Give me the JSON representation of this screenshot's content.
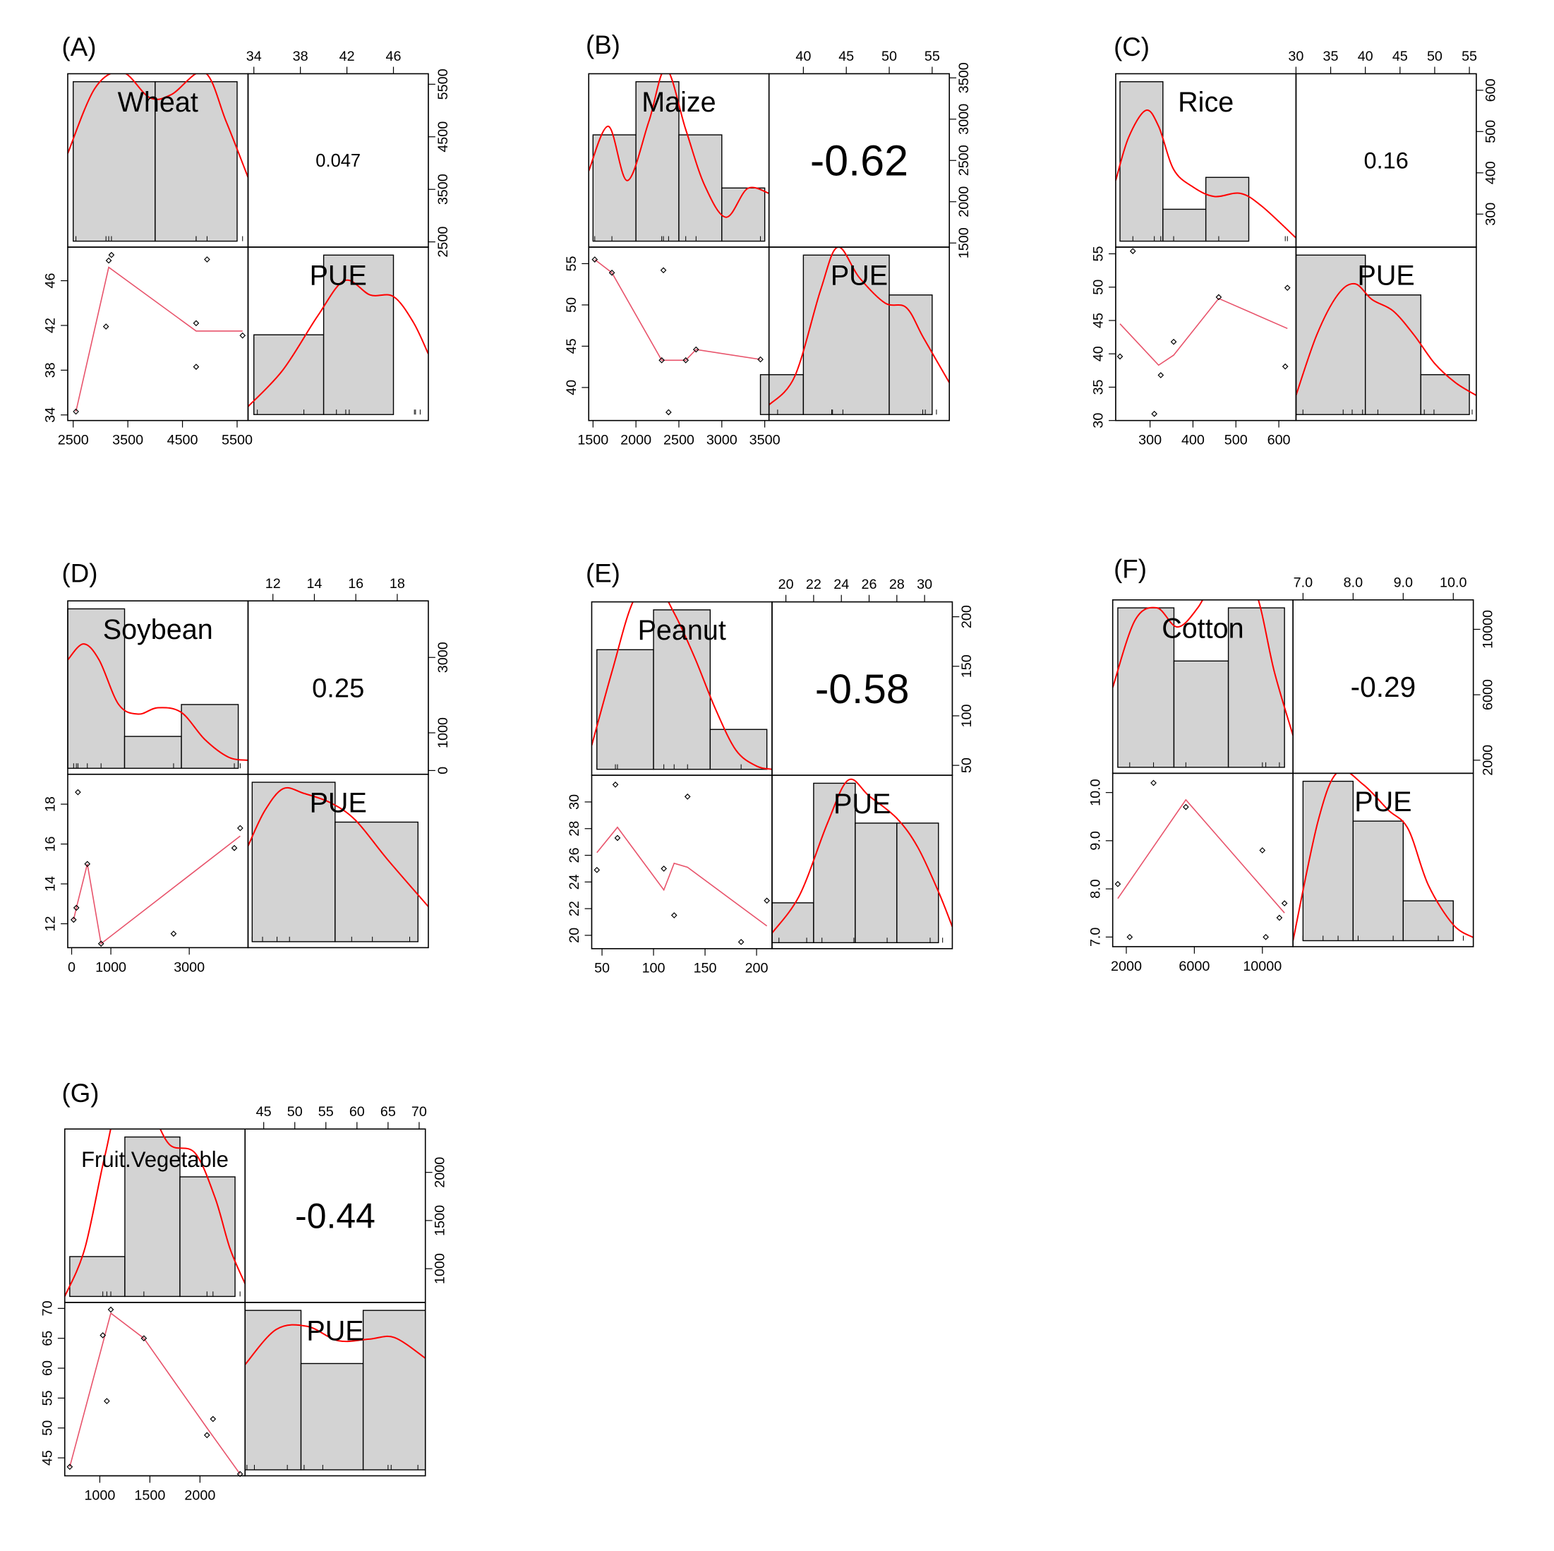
{
  "colors": {
    "bar_fill": "#d3d3d3",
    "frame": "#000000",
    "density": "#ff0000",
    "smoother": "#e8536b",
    "point": "#000000"
  },
  "chart_data": [
    {
      "panel": "(A)",
      "type": "scatter-matrix",
      "vars": [
        "Wheat",
        "PUE"
      ],
      "ranges": [
        [
          2400,
          5700
        ],
        [
          33.5,
          49
        ]
      ],
      "ticks_var1": [
        2500,
        3500,
        4500,
        5500
      ],
      "tick_labels_var1": [
        "2500",
        "3500",
        "4500",
        "5500"
      ],
      "ticks_var2": [
        34,
        38,
        42,
        46
      ],
      "tick_labels_var2": [
        "34",
        "38",
        "42",
        "46"
      ],
      "correlation": "0.047",
      "points": [
        [
          2550,
          34.3
        ],
        [
          3100,
          41.9
        ],
        [
          3150,
          47.8
        ],
        [
          3200,
          48.3
        ],
        [
          4750,
          42.2
        ],
        [
          4750,
          38.3
        ],
        [
          4950,
          47.9
        ],
        [
          5600,
          41.1
        ]
      ],
      "smooth": [
        [
          2550,
          34.3
        ],
        [
          3150,
          47.2
        ],
        [
          4750,
          41.5
        ],
        [
          5600,
          41.5
        ]
      ],
      "hist_var1": {
        "breaks": [
          2500,
          4000,
          5500
        ],
        "counts": [
          4,
          4
        ],
        "max": 4
      },
      "hist_var2": {
        "breaks": [
          34,
          40,
          46
        ],
        "counts": [
          1,
          2
        ],
        "max": 2
      },
      "density_var1": [
        [
          2400,
          0.55
        ],
        [
          2900,
          0.96
        ],
        [
          3400,
          1.06
        ],
        [
          3900,
          0.9
        ],
        [
          4300,
          0.92
        ],
        [
          4900,
          1.06
        ],
        [
          5300,
          0.75
        ],
        [
          5700,
          0.4
        ]
      ],
      "density_var2": [
        [
          33.5,
          0.05
        ],
        [
          36.5,
          0.28
        ],
        [
          39.5,
          0.62
        ],
        [
          41.8,
          0.84
        ],
        [
          44,
          0.75
        ],
        [
          46,
          0.74
        ],
        [
          47.7,
          0.58
        ],
        [
          49,
          0.38
        ]
      ]
    },
    {
      "panel": "(B)",
      "type": "scatter-matrix",
      "vars": [
        "Maize",
        "PUE"
      ],
      "ranges": [
        [
          1450,
          3550
        ],
        [
          36,
          57
        ]
      ],
      "ticks_var1": [
        1500,
        2000,
        2500,
        3000,
        3500
      ],
      "tick_labels_var1": [
        "1500",
        "2000",
        "2500",
        "3000",
        "3500"
      ],
      "ticks_var2": [
        40,
        45,
        50,
        55
      ],
      "tick_labels_var2": [
        "40",
        "45",
        "50",
        "55"
      ],
      "correlation": "-0.62",
      "points": [
        [
          1520,
          55.5
        ],
        [
          1720,
          53.9
        ],
        [
          2300,
          43.3
        ],
        [
          2320,
          54.2
        ],
        [
          2380,
          37.0
        ],
        [
          2580,
          43.3
        ],
        [
          2700,
          44.6
        ],
        [
          3450,
          43.4
        ]
      ],
      "smooth": [
        [
          1520,
          55.5
        ],
        [
          1720,
          53.9
        ],
        [
          2300,
          43.3
        ],
        [
          2580,
          43.3
        ],
        [
          2700,
          44.6
        ],
        [
          3450,
          43.4
        ]
      ],
      "hist_var1": {
        "breaks": [
          1500,
          2000,
          2500,
          3000,
          3500
        ],
        "counts": [
          2,
          3,
          2,
          1
        ],
        "max": 3
      },
      "hist_var2": {
        "breaks": [
          35,
          40,
          50,
          55
        ],
        "counts": [
          1,
          4,
          3
        ],
        "max": 4
      },
      "density_var1": [
        [
          1450,
          0.44
        ],
        [
          1680,
          0.72
        ],
        [
          1900,
          0.38
        ],
        [
          2150,
          0.75
        ],
        [
          2350,
          1.08
        ],
        [
          2580,
          0.7
        ],
        [
          2800,
          0.35
        ],
        [
          3050,
          0.15
        ],
        [
          3300,
          0.33
        ],
        [
          3550,
          0.3
        ]
      ],
      "density_var2": [
        [
          36,
          0.06
        ],
        [
          39,
          0.24
        ],
        [
          42,
          0.78
        ],
        [
          44,
          1.05
        ],
        [
          46.5,
          0.86
        ],
        [
          49.5,
          0.7
        ],
        [
          52,
          0.67
        ],
        [
          54,
          0.48
        ],
        [
          57,
          0.2
        ]
      ]
    },
    {
      "panel": "(C)",
      "type": "scatter-matrix",
      "vars": [
        "Rice",
        "PUE"
      ],
      "ranges": [
        [
          220,
          640
        ],
        [
          30,
          56
        ]
      ],
      "ticks_var1": [
        300,
        400,
        500,
        600
      ],
      "tick_labels_var1": [
        "300",
        "400",
        "500",
        "600"
      ],
      "ticks_var2": [
        30,
        35,
        40,
        45,
        50,
        55
      ],
      "tick_labels_var2": [
        "30",
        "35",
        "40",
        "45",
        "50",
        "55"
      ],
      "correlation": "0.16",
      "points": [
        [
          230,
          39.6
        ],
        [
          260,
          55.4
        ],
        [
          310,
          31.0
        ],
        [
          325,
          36.8
        ],
        [
          355,
          41.8
        ],
        [
          460,
          48.5
        ],
        [
          615,
          38.1
        ],
        [
          620,
          49.9
        ]
      ],
      "smooth": [
        [
          230,
          44.5
        ],
        [
          320,
          38.3
        ],
        [
          355,
          39.8
        ],
        [
          460,
          48.3
        ],
        [
          620,
          43.8
        ]
      ],
      "hist_var1": {
        "breaks": [
          230,
          330,
          430,
          530,
          630
        ],
        "counts": [
          5,
          1,
          2,
          0
        ],
        "max": 5
      },
      "hist_var2": {
        "breaks": [
          30,
          40,
          48,
          55
        ],
        "counts": [
          4,
          3,
          1
        ],
        "max": 4
      },
      "density_var1": [
        [
          220,
          0.38
        ],
        [
          250,
          0.65
        ],
        [
          290,
          0.82
        ],
        [
          320,
          0.72
        ],
        [
          355,
          0.45
        ],
        [
          400,
          0.34
        ],
        [
          450,
          0.28
        ],
        [
          510,
          0.3
        ],
        [
          560,
          0.22
        ],
        [
          640,
          0.02
        ]
      ],
      "density_var2": [
        [
          30,
          0.12
        ],
        [
          33,
          0.5
        ],
        [
          36,
          0.75
        ],
        [
          38.5,
          0.82
        ],
        [
          41,
          0.72
        ],
        [
          44,
          0.65
        ],
        [
          47,
          0.5
        ],
        [
          50,
          0.32
        ],
        [
          53,
          0.2
        ],
        [
          56,
          0.12
        ]
      ]
    },
    {
      "panel": "(D)",
      "type": "scatter-matrix",
      "vars": [
        "Soybean",
        "PUE"
      ],
      "ranges": [
        [
          -100,
          4500
        ],
        [
          10.8,
          19.5
        ]
      ],
      "ticks_var1": [
        0,
        1000,
        3000
      ],
      "tick_labels_var1": [
        "0",
        "1000",
        "3000"
      ],
      "ticks_var2": [
        12,
        14,
        16,
        18
      ],
      "tick_labels_var2": [
        "12",
        "14",
        "16",
        "18"
      ],
      "correlation": "0.25",
      "points": [
        [
          50,
          12.2
        ],
        [
          120,
          12.8
        ],
        [
          160,
          18.6
        ],
        [
          400,
          15.0
        ],
        [
          750,
          11.0
        ],
        [
          2600,
          11.5
        ],
        [
          4150,
          15.8
        ],
        [
          4300,
          16.8
        ]
      ],
      "smooth": [
        [
          50,
          12.2
        ],
        [
          120,
          12.8
        ],
        [
          400,
          15.0
        ],
        [
          750,
          11.0
        ],
        [
          4300,
          16.4
        ]
      ],
      "hist_var1": {
        "breaks": [
          -100,
          1350,
          2800,
          4250
        ],
        "counts": [
          5,
          1,
          2
        ],
        "max": 5
      },
      "hist_var2": {
        "breaks": [
          11,
          15,
          19
        ],
        "counts": [
          4,
          3
        ],
        "max": 4
      },
      "density_var1": [
        [
          -100,
          0.68
        ],
        [
          300,
          0.78
        ],
        [
          700,
          0.68
        ],
        [
          1200,
          0.4
        ],
        [
          1700,
          0.34
        ],
        [
          2200,
          0.38
        ],
        [
          2800,
          0.35
        ],
        [
          3400,
          0.18
        ],
        [
          4000,
          0.07
        ],
        [
          4500,
          0.05
        ]
      ],
      "density_var2": [
        [
          10.8,
          0.6
        ],
        [
          11.6,
          0.82
        ],
        [
          12.5,
          0.96
        ],
        [
          13.5,
          0.93
        ],
        [
          14.8,
          0.87
        ],
        [
          16,
          0.76
        ],
        [
          17.5,
          0.52
        ],
        [
          19.5,
          0.22
        ]
      ]
    },
    {
      "panel": "(E)",
      "type": "scatter-matrix",
      "vars": [
        "Peanut",
        "PUE"
      ],
      "ranges": [
        [
          40,
          215
        ],
        [
          19,
          32
        ]
      ],
      "ticks_var1": [
        50,
        100,
        150,
        200
      ],
      "tick_labels_var1": [
        "50",
        "100",
        "150",
        "200"
      ],
      "ticks_var2": [
        20,
        22,
        24,
        26,
        28,
        30
      ],
      "tick_labels_var2": [
        "20",
        "22",
        "24",
        "26",
        "28",
        "30"
      ],
      "correlation": "-0.58",
      "points": [
        [
          45,
          24.9
        ],
        [
          63,
          31.3
        ],
        [
          65,
          27.3
        ],
        [
          110,
          25.0
        ],
        [
          120,
          21.5
        ],
        [
          133,
          30.4
        ],
        [
          185,
          19.5
        ],
        [
          210,
          22.6
        ]
      ],
      "smooth": [
        [
          45,
          26.2
        ],
        [
          65,
          28.1
        ],
        [
          110,
          23.4
        ],
        [
          120,
          25.4
        ],
        [
          133,
          25.1
        ],
        [
          210,
          20.7
        ]
      ],
      "hist_var1": {
        "breaks": [
          45,
          100,
          155,
          210
        ],
        "counts": [
          3,
          4,
          1
        ],
        "max": 4
      },
      "hist_var2": {
        "breaks": [
          19,
          22,
          25,
          28,
          31
        ],
        "counts": [
          1,
          4,
          3,
          3
        ],
        "max": 4
      },
      "density_var1": [
        [
          40,
          0.15
        ],
        [
          60,
          0.62
        ],
        [
          80,
          1.05
        ],
        [
          100,
          1.18
        ],
        [
          120,
          0.98
        ],
        [
          140,
          0.7
        ],
        [
          160,
          0.38
        ],
        [
          180,
          0.12
        ],
        [
          200,
          0.02
        ],
        [
          215,
          0.0
        ]
      ],
      "density_var2": [
        [
          19,
          0.06
        ],
        [
          21,
          0.3
        ],
        [
          23,
          0.75
        ],
        [
          24.5,
          1.02
        ],
        [
          26,
          0.92
        ],
        [
          28,
          0.78
        ],
        [
          29.5,
          0.6
        ],
        [
          31,
          0.32
        ],
        [
          32,
          0.1
        ]
      ]
    },
    {
      "panel": "(F)",
      "type": "scatter-matrix",
      "vars": [
        "Cotton",
        "PUE"
      ],
      "ranges": [
        [
          1200,
          11800
        ],
        [
          6.8,
          10.4
        ]
      ],
      "ticks_var1": [
        2000,
        6000,
        10000
      ],
      "tick_labels_var1": [
        "2000",
        "6000",
        "10000"
      ],
      "ticks_var2": [
        7.0,
        8.0,
        9.0,
        10.0
      ],
      "tick_labels_var2": [
        "7.0",
        "8.0",
        "9.0",
        "10.0"
      ],
      "correlation": "-0.29",
      "points": [
        [
          1500,
          8.1
        ],
        [
          2200,
          7.0
        ],
        [
          3600,
          10.2
        ],
        [
          5500,
          9.7
        ],
        [
          10000,
          8.8
        ],
        [
          10200,
          7.0
        ],
        [
          11000,
          7.4
        ],
        [
          11300,
          7.7
        ]
      ],
      "smooth": [
        [
          1500,
          7.8
        ],
        [
          5500,
          9.85
        ],
        [
          11300,
          7.5
        ]
      ],
      "hist_var1": {
        "breaks": [
          1500,
          4800,
          8000,
          11300
        ],
        "counts": [
          3,
          2,
          3
        ],
        "max": 3
      },
      "hist_var2": {
        "breaks": [
          7.0,
          8.0,
          9.0,
          10.0
        ],
        "counts": [
          4,
          3,
          1
        ],
        "max": 4
      },
      "density_var1": [
        [
          1200,
          0.5
        ],
        [
          2500,
          0.92
        ],
        [
          3800,
          1.0
        ],
        [
          5000,
          0.88
        ],
        [
          6200,
          1.0
        ],
        [
          7300,
          1.2
        ],
        [
          8300,
          1.2
        ],
        [
          9600,
          1.1
        ],
        [
          10700,
          0.6
        ],
        [
          11800,
          0.2
        ]
      ],
      "density_var2": [
        [
          6.8,
          0.0
        ],
        [
          7.3,
          0.75
        ],
        [
          7.7,
          1.06
        ],
        [
          8.2,
          0.98
        ],
        [
          8.7,
          0.82
        ],
        [
          9.1,
          0.7
        ],
        [
          9.5,
          0.35
        ],
        [
          10.0,
          0.1
        ],
        [
          10.4,
          0.02
        ]
      ]
    },
    {
      "panel": "(G)",
      "type": "scatter-matrix",
      "vars": [
        "Fruit.Vegetable",
        "PUE"
      ],
      "ranges": [
        [
          650,
          2450
        ],
        [
          42,
          71
        ]
      ],
      "ticks_var1": [
        1000,
        1500,
        2000
      ],
      "tick_labels_var1": [
        "1000",
        "1500",
        "2000"
      ],
      "ticks_var2": [
        45,
        50,
        55,
        60,
        65,
        70
      ],
      "tick_labels_var2": [
        "45",
        "50",
        "55",
        "60",
        "65",
        "70"
      ],
      "correlation": "-0.44",
      "points": [
        [
          700,
          43.5
        ],
        [
          1030,
          65.5
        ],
        [
          1070,
          54.5
        ],
        [
          1110,
          69.8
        ],
        [
          1440,
          65.0
        ],
        [
          2070,
          48.8
        ],
        [
          2130,
          51.5
        ],
        [
          2400,
          42.3
        ]
      ],
      "smooth": [
        [
          700,
          43.5
        ],
        [
          1110,
          69.2
        ],
        [
          1440,
          65.0
        ],
        [
          2070,
          50.0
        ],
        [
          2400,
          42.3
        ]
      ],
      "hist_var1": {
        "breaks": [
          700,
          1250,
          1800,
          2350
        ],
        "counts": [
          1,
          4,
          3
        ],
        "max": 4
      },
      "hist_var2": {
        "breaks": [
          42,
          51,
          61,
          71
        ],
        "counts": [
          3,
          2,
          3
        ],
        "max": 3
      },
      "density_var1": [
        [
          650,
          0.0
        ],
        [
          850,
          0.3
        ],
        [
          1050,
          0.88
        ],
        [
          1200,
          1.2
        ],
        [
          1500,
          1.15
        ],
        [
          1700,
          0.95
        ],
        [
          1950,
          0.9
        ],
        [
          2150,
          0.62
        ],
        [
          2300,
          0.3
        ],
        [
          2450,
          0.08
        ]
      ],
      "density_var2": [
        [
          42,
          0.66
        ],
        [
          47,
          0.88
        ],
        [
          52,
          0.9
        ],
        [
          57,
          0.81
        ],
        [
          62,
          0.82
        ],
        [
          66,
          0.83
        ],
        [
          71,
          0.7
        ]
      ]
    }
  ]
}
